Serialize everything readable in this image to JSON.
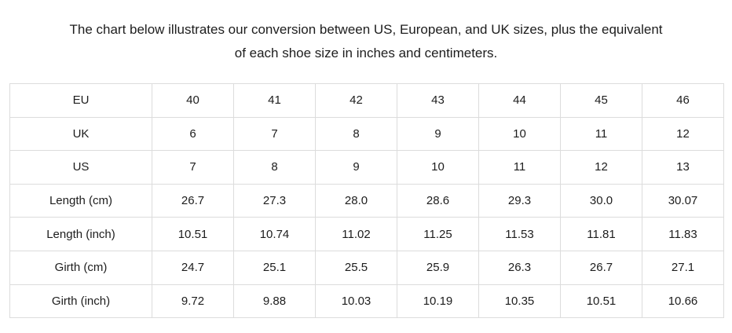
{
  "heading": {
    "line1": "The chart below illustrates our conversion between US, European, and UK sizes, plus the equivalent",
    "line2": "of each shoe size in inches and centimeters."
  },
  "chart_data": {
    "type": "table",
    "title": "The chart below illustrates our conversion between US, European, and UK sizes, plus the equivalent of each shoe size in inches and centimeters.",
    "columns_per_row": 7,
    "rows": [
      {
        "label": "EU",
        "values": [
          "40",
          "41",
          "42",
          "43",
          "44",
          "45",
          "46"
        ]
      },
      {
        "label": "UK",
        "values": [
          "6",
          "7",
          "8",
          "9",
          "10",
          "11",
          "12"
        ]
      },
      {
        "label": "US",
        "values": [
          "7",
          "8",
          "9",
          "10",
          "11",
          "12",
          "13"
        ]
      },
      {
        "label": "Length (cm)",
        "values": [
          "26.7",
          "27.3",
          "28.0",
          "28.6",
          "29.3",
          "30.0",
          "30.07"
        ]
      },
      {
        "label": "Length (inch)",
        "values": [
          "10.51",
          "10.74",
          "11.02",
          "11.25",
          "11.53",
          "11.81",
          "11.83"
        ]
      },
      {
        "label": "Girth (cm)",
        "values": [
          "24.7",
          "25.1",
          "25.5",
          "25.9",
          "26.3",
          "26.7",
          "27.1"
        ]
      },
      {
        "label": "Girth (inch)",
        "values": [
          "9.72",
          "9.88",
          "10.03",
          "10.19",
          "10.35",
          "10.51",
          "10.66"
        ]
      }
    ]
  },
  "colors": {
    "background": "#ffffff",
    "text": "#1d1d1d",
    "table_border": "#dcdcdc"
  }
}
